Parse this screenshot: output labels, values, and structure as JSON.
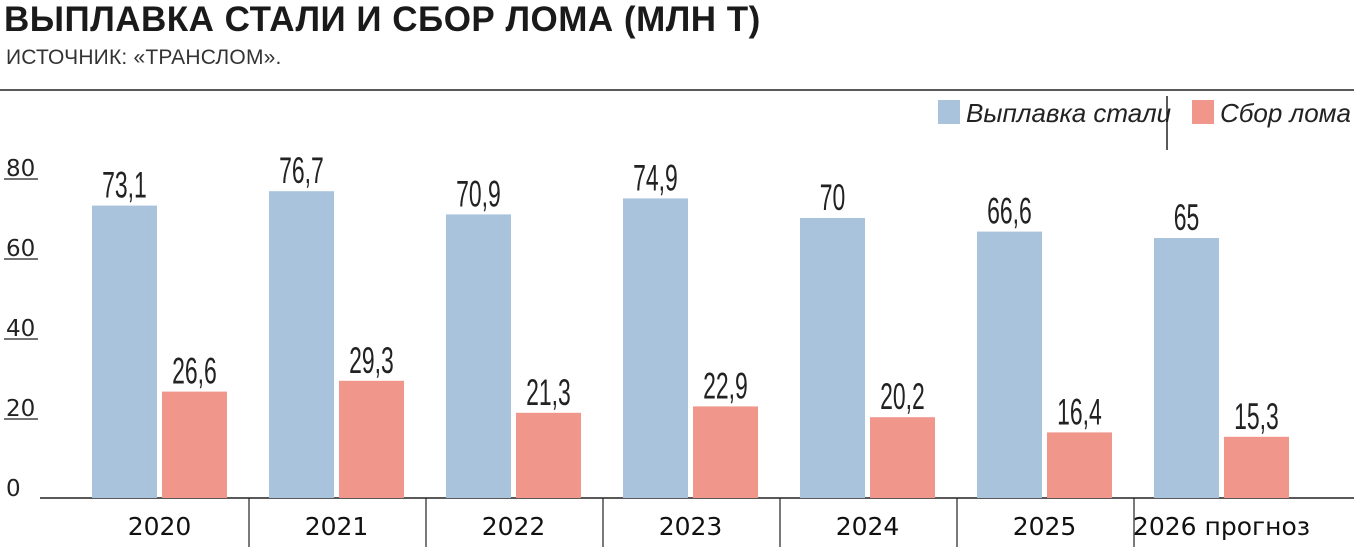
{
  "title": "ВЫПЛАВКА СТАЛИ И СБОР ЛОМА (МЛН Т)",
  "subtitle": "ИСТОЧНИК: «ТРАНСЛОМ».",
  "colors": {
    "steel": "#a9c3dd",
    "scrap": "#f0968b"
  },
  "chart_data": {
    "type": "bar",
    "categories": [
      "2020",
      "2021",
      "2022",
      "2023",
      "2024",
      "2025",
      "2026 прогноз"
    ],
    "series": [
      {
        "name": "Выплавка стали",
        "values": [
          73.1,
          76.7,
          70.9,
          74.9,
          70,
          66.6,
          65
        ],
        "labels": [
          "73,1",
          "76,7",
          "70,9",
          "74,9",
          "70",
          "66,6",
          "65"
        ]
      },
      {
        "name": "Сбор лома",
        "values": [
          26.6,
          29.3,
          21.3,
          22.9,
          20.2,
          16.4,
          15.3
        ],
        "labels": [
          "26,6",
          "29,3",
          "21,3",
          "22,9",
          "20,2",
          "16,4",
          "15,3"
        ]
      }
    ],
    "yticks": [
      "0",
      "20",
      "40",
      "60",
      "80"
    ],
    "ylim": [
      0,
      80
    ],
    "legend": "top-right",
    "grid": false
  }
}
